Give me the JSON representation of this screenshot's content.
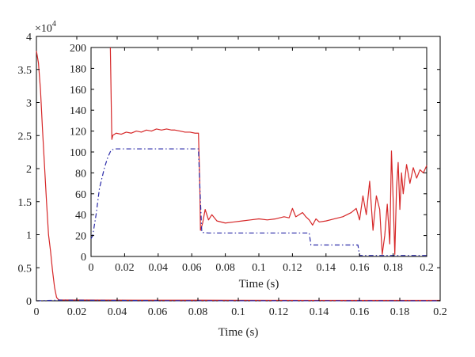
{
  "chart_data": [
    {
      "id": "main",
      "type": "line",
      "xlabel": "Time (s)",
      "ylabel": "",
      "multiplier_label": "×10",
      "multiplier_exponent": "4",
      "xlim": [
        0,
        0.2
      ],
      "ylim": [
        0,
        4
      ],
      "grid": false,
      "xticks": [
        0,
        0.02,
        0.04,
        0.06,
        0.08,
        0.1,
        0.12,
        0.14,
        0.16,
        0.18,
        0.2
      ],
      "xtick_labels": [
        "0",
        "0.02",
        "0.04",
        "0.06",
        "0.08",
        "0.1",
        "0.12",
        "0.14",
        "0.16",
        "0.18",
        "0.2"
      ],
      "yticks": [
        0,
        0.5,
        1,
        1.5,
        2,
        2.5,
        3,
        3.5,
        4
      ],
      "ytick_labels": [
        "0",
        "0.5",
        "1",
        "1.5",
        "2",
        "2.5",
        "3",
        "3.5",
        "4"
      ],
      "series": [
        {
          "color": "#d62728",
          "style": "solid",
          "x": [
            0,
            0.001,
            0.002,
            0.003,
            0.004,
            0.005,
            0.006,
            0.007,
            0.008,
            0.009,
            0.01,
            0.011,
            0.012,
            0.02,
            0.05,
            0.1,
            0.15,
            0.2
          ],
          "y": [
            3.78,
            3.6,
            3.2,
            2.6,
            2.05,
            1.5,
            1.0,
            0.75,
            0.45,
            0.2,
            0.05,
            0.015,
            0.012,
            0.012,
            0.01,
            0.008,
            0.006,
            0.006
          ]
        },
        {
          "color": "#2a2aa8",
          "style": "dashdot",
          "x": [
            0,
            0.005,
            0.012,
            0.065,
            0.13,
            0.16,
            0.2
          ],
          "y": [
            0,
            0.004,
            0.0103,
            0.0023,
            0.0011,
            0.0002,
            0.0002
          ]
        }
      ]
    },
    {
      "id": "inset",
      "type": "line",
      "xlabel": "Time (s)",
      "ylabel": "",
      "xlim": [
        0,
        0.2
      ],
      "ylim": [
        0,
        200
      ],
      "grid": false,
      "xticks": [
        0,
        0.02,
        0.04,
        0.06,
        0.08,
        0.1,
        0.12,
        0.14,
        0.16,
        0.18,
        0.2
      ],
      "xtick_labels": [
        "0",
        "0.02",
        "0.04",
        "0.06",
        "0.08",
        "0.1",
        "0.12",
        "0.14",
        "0.16",
        "0.18",
        "0.2"
      ],
      "yticks": [
        0,
        20,
        40,
        60,
        80,
        100,
        120,
        140,
        160,
        180,
        200
      ],
      "ytick_labels": [
        "0",
        "20",
        "40",
        "60",
        "80",
        "100",
        "120",
        "140",
        "160",
        "180",
        "200"
      ],
      "series": [
        {
          "color": "#d62728",
          "style": "solid",
          "x": [
            0.0115,
            0.0118,
            0.0121,
            0.0124,
            0.013,
            0.015,
            0.018,
            0.021,
            0.024,
            0.027,
            0.03,
            0.033,
            0.036,
            0.039,
            0.042,
            0.045,
            0.048,
            0.05,
            0.053,
            0.056,
            0.059,
            0.062,
            0.064,
            0.0648,
            0.0652,
            0.0665,
            0.068,
            0.07,
            0.072,
            0.075,
            0.08,
            0.085,
            0.09,
            0.095,
            0.1,
            0.105,
            0.11,
            0.115,
            0.118,
            0.12,
            0.122,
            0.124,
            0.126,
            0.128,
            0.13,
            0.132,
            0.134,
            0.136,
            0.14,
            0.145,
            0.15,
            0.155,
            0.158,
            0.16,
            0.162,
            0.164,
            0.166,
            0.168,
            0.17,
            0.172,
            0.1735,
            0.175,
            0.1765,
            0.178,
            0.179,
            0.18,
            0.181,
            0.182,
            0.183,
            0.184,
            0.185,
            0.186,
            0.188,
            0.19,
            0.192,
            0.194,
            0.196,
            0.198,
            0.2
          ],
          "y": [
            200,
            170,
            140,
            112,
            116,
            118,
            117,
            119,
            118,
            120,
            119,
            121,
            120,
            122,
            121,
            122,
            121,
            121,
            120,
            119,
            119,
            118,
            118,
            70,
            25,
            32,
            45,
            35,
            40,
            34,
            32,
            33,
            34,
            35,
            36,
            35,
            36,
            38,
            37,
            46,
            38,
            40,
            42,
            38,
            35,
            30,
            36,
            33,
            34,
            36,
            38,
            42,
            46,
            35,
            58,
            40,
            72,
            25,
            58,
            45,
            2,
            20,
            50,
            12,
            101,
            55,
            2,
            65,
            90,
            45,
            80,
            60,
            88,
            70,
            85,
            75,
            83,
            80,
            87
          ]
        },
        {
          "color": "#2a2aa8",
          "style": "dashdot",
          "x": [
            0,
            0.001,
            0.003,
            0.005,
            0.008,
            0.01,
            0.012,
            0.015,
            0.02,
            0.064,
            0.065,
            0.066,
            0.07,
            0.1,
            0.13,
            0.131,
            0.14,
            0.159,
            0.16,
            0.17,
            0.2
          ],
          "y": [
            17,
            20,
            40,
            65,
            85,
            95,
            102,
            103,
            103,
            103,
            60,
            23,
            22.5,
            22.5,
            22.5,
            11,
            11,
            11,
            1,
            1,
            1
          ]
        }
      ]
    }
  ]
}
